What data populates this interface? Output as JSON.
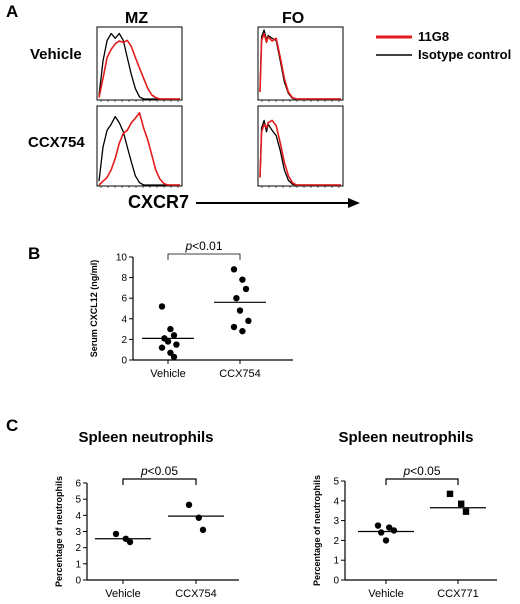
{
  "panels": {
    "a": "A",
    "b": "B",
    "c": "C"
  },
  "panel_a": {
    "columns": [
      "MZ",
      "FO"
    ],
    "rows": [
      "Vehicle",
      "CCX754"
    ],
    "axis_label": "CXCR7",
    "legend": [
      {
        "label": "11G8",
        "color": "#e31b1b"
      },
      {
        "label": "Isotype control",
        "color": "#000000"
      }
    ]
  },
  "colors": {
    "red": "#e31b1b",
    "black": "#000000"
  },
  "chart_data": [
    {
      "type": "line",
      "panel": "A",
      "description_of_data": "flow cytometry histograms of CXCR7 staining",
      "x_scale": "log",
      "title": "",
      "xlabel": "CXCR7",
      "ylabel": "",
      "grid": false,
      "legend_position": "right",
      "series_names": [
        "11G8",
        "Isotype control"
      ],
      "histograms": [
        {
          "row": "Vehicle",
          "column": "MZ",
          "series": [
            {
              "name": "11G8",
              "x": [
                0,
                0.05,
                0.1,
                0.15,
                0.2,
                0.25,
                0.3,
                0.35,
                0.4,
                0.45,
                0.5,
                0.55,
                0.6,
                0.65,
                0.7,
                0.75,
                0.8,
                0.85,
                0.9,
                1
              ],
              "y": [
                0.02,
                0.3,
                0.6,
                0.72,
                0.8,
                0.84,
                0.82,
                0.85,
                0.76,
                0.6,
                0.45,
                0.3,
                0.16,
                0.06,
                0.02,
                0,
                0,
                0,
                0,
                0
              ]
            },
            {
              "name": "Isotype control",
              "x": [
                0,
                0.05,
                0.1,
                0.15,
                0.2,
                0.25,
                0.3,
                0.35,
                0.4,
                0.45,
                0.5,
                0.55,
                0.6,
                0.65,
                0.7,
                0.75,
                0.8,
                0.85,
                0.9,
                1
              ],
              "y": [
                0.05,
                0.55,
                0.85,
                0.95,
                0.88,
                0.95,
                0.85,
                0.6,
                0.35,
                0.15,
                0.03,
                0,
                0,
                0,
                0,
                0,
                0,
                0,
                0,
                0
              ]
            }
          ]
        },
        {
          "row": "Vehicle",
          "column": "FO",
          "series": [
            {
              "name": "11G8",
              "x": [
                0,
                0.02,
                0.05,
                0.08,
                0.1,
                0.15,
                0.2,
                0.25,
                0.3,
                0.35,
                0.4,
                0.45,
                0.5,
                0.55,
                0.6,
                0.7,
                0.8,
                1
              ],
              "y": [
                0.1,
                0.85,
                0.95,
                0.82,
                0.9,
                0.84,
                0.88,
                0.6,
                0.3,
                0.1,
                0.02,
                0,
                0,
                0,
                0,
                0,
                0,
                0
              ]
            },
            {
              "name": "Isotype control",
              "x": [
                0,
                0.02,
                0.05,
                0.08,
                0.1,
                0.15,
                0.2,
                0.25,
                0.3,
                0.35,
                0.4,
                0.45,
                0.5,
                0.55,
                0.6,
                0.7,
                0.8,
                1
              ],
              "y": [
                0.12,
                0.9,
                1,
                0.85,
                0.92,
                0.88,
                0.85,
                0.55,
                0.25,
                0.08,
                0.01,
                0,
                0,
                0,
                0,
                0,
                0,
                0
              ]
            }
          ]
        },
        {
          "row": "CCX754",
          "column": "MZ",
          "series": [
            {
              "name": "11G8",
              "x": [
                0,
                0.05,
                0.1,
                0.15,
                0.2,
                0.25,
                0.3,
                0.35,
                0.4,
                0.45,
                0.5,
                0.55,
                0.6,
                0.65,
                0.7,
                0.75,
                0.8,
                0.85,
                0.9,
                1
              ],
              "y": [
                0,
                0.05,
                0.1,
                0.2,
                0.35,
                0.55,
                0.68,
                0.72,
                0.82,
                0.88,
                0.95,
                0.75,
                0.6,
                0.4,
                0.2,
                0.08,
                0.02,
                0,
                0,
                0
              ]
            },
            {
              "name": "Isotype control",
              "x": [
                0,
                0.05,
                0.1,
                0.15,
                0.2,
                0.25,
                0.3,
                0.35,
                0.4,
                0.45,
                0.5,
                0.55,
                0.6,
                0.65,
                0.7,
                0.75,
                0.8,
                0.85,
                0.9,
                1
              ],
              "y": [
                0.05,
                0.5,
                0.72,
                0.8,
                0.9,
                0.82,
                0.7,
                0.5,
                0.3,
                0.12,
                0.03,
                0,
                0,
                0,
                0,
                0,
                0,
                0,
                0,
                0
              ]
            }
          ]
        },
        {
          "row": "CCX754",
          "column": "FO",
          "series": [
            {
              "name": "11G8",
              "x": [
                0,
                0.02,
                0.05,
                0.08,
                0.1,
                0.15,
                0.2,
                0.25,
                0.3,
                0.35,
                0.4,
                0.45,
                0.5,
                0.55,
                0.6,
                0.7,
                0.8,
                1
              ],
              "y": [
                0.1,
                0.7,
                0.8,
                0.75,
                0.82,
                0.85,
                0.78,
                0.55,
                0.3,
                0.12,
                0.03,
                0,
                0,
                0,
                0,
                0,
                0,
                0
              ]
            },
            {
              "name": "Isotype control",
              "x": [
                0,
                0.02,
                0.05,
                0.08,
                0.1,
                0.15,
                0.2,
                0.25,
                0.3,
                0.35,
                0.4,
                0.45,
                0.5,
                0.55,
                0.6,
                0.7,
                0.8,
                1
              ],
              "y": [
                0.1,
                0.75,
                0.85,
                0.7,
                0.8,
                0.72,
                0.65,
                0.45,
                0.2,
                0.06,
                0.01,
                0,
                0,
                0,
                0,
                0,
                0,
                0
              ]
            }
          ]
        }
      ]
    },
    {
      "type": "scatter",
      "panel": "B",
      "title": "",
      "xlabel": "",
      "ylabel": "Serum CXCL12 (ng/ml)",
      "ylim": [
        0,
        10
      ],
      "yticks": [
        0,
        2,
        4,
        6,
        8,
        10
      ],
      "categories": [
        "Vehicle",
        "CCX754"
      ],
      "points": [
        [
          5.2,
          3.0,
          2.4,
          2.1,
          1.8,
          1.5,
          1.2,
          0.7,
          0.3
        ],
        [
          8.8,
          7.8,
          6.9,
          6.0,
          4.8,
          3.8,
          3.2,
          2.8
        ]
      ],
      "means": [
        2.1,
        5.6
      ],
      "annotation": {
        "italic": "p",
        "text": "<0.01"
      }
    },
    {
      "type": "scatter",
      "panel": "C",
      "title": "Spleen neutrophils",
      "xlabel": "",
      "ylabel": "Percentage of neutrophils",
      "ylim": [
        0,
        6
      ],
      "yticks": [
        0,
        1,
        2,
        3,
        4,
        5,
        6
      ],
      "categories": [
        "Vehicle",
        "CCX754"
      ],
      "points": [
        [
          2.85,
          2.55,
          2.35
        ],
        [
          4.65,
          3.85,
          3.1
        ]
      ],
      "means": [
        2.55,
        3.95
      ],
      "annotation": {
        "italic": "p",
        "text": "<0.05"
      }
    },
    {
      "type": "scatter",
      "panel": "C",
      "title": "Spleen neutrophils",
      "xlabel": "",
      "ylabel": "Percentage of neutrophils",
      "ylim": [
        0,
        5
      ],
      "yticks": [
        0,
        1,
        2,
        3,
        4,
        5
      ],
      "categories": [
        "Vehicle",
        "CCX771"
      ],
      "points": [
        [
          2.75,
          2.65,
          2.5,
          2.4,
          2.0
        ],
        [
          4.35,
          3.85,
          3.45
        ]
      ],
      "markers": [
        "circle",
        "square"
      ],
      "means": [
        2.45,
        3.65
      ],
      "annotation": {
        "italic": "p",
        "text": "<0.05"
      }
    }
  ]
}
